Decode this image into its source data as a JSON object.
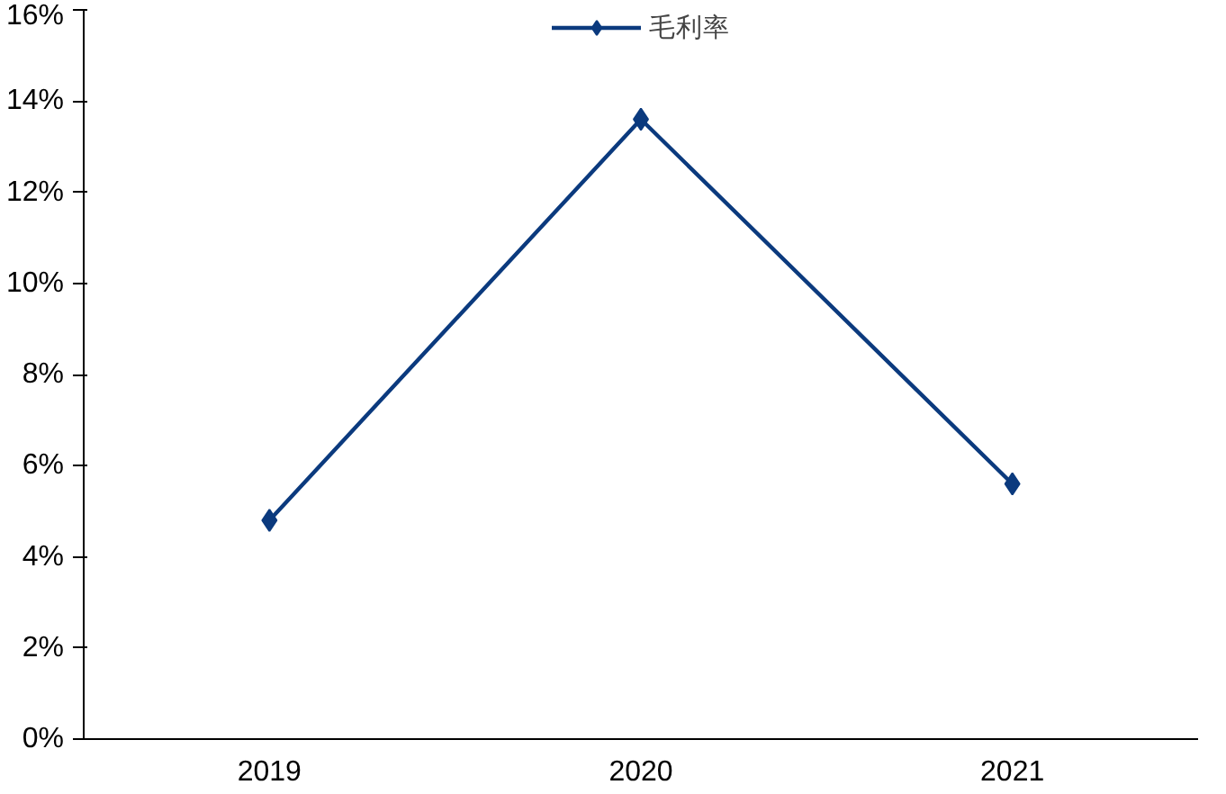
{
  "chart_data": {
    "type": "line",
    "categories": [
      "2019",
      "2020",
      "2021"
    ],
    "series": [
      {
        "name": "毛利率",
        "color": "#0b3a7e",
        "values": [
          4.8,
          13.6,
          5.6
        ]
      }
    ],
    "ylim": [
      0,
      16
    ],
    "yticks": [
      {
        "value": 0,
        "label": "0%"
      },
      {
        "value": 2,
        "label": "2%"
      },
      {
        "value": 4,
        "label": "4%"
      },
      {
        "value": 6,
        "label": "6%"
      },
      {
        "value": 8,
        "label": "8%"
      },
      {
        "value": 10,
        "label": "10%"
      },
      {
        "value": 12,
        "label": "12%"
      },
      {
        "value": 14,
        "label": "14%"
      },
      {
        "value": 16,
        "label": "16%"
      }
    ],
    "grid": false,
    "legend": "top",
    "marker": "diamond",
    "line_style": "solid"
  }
}
